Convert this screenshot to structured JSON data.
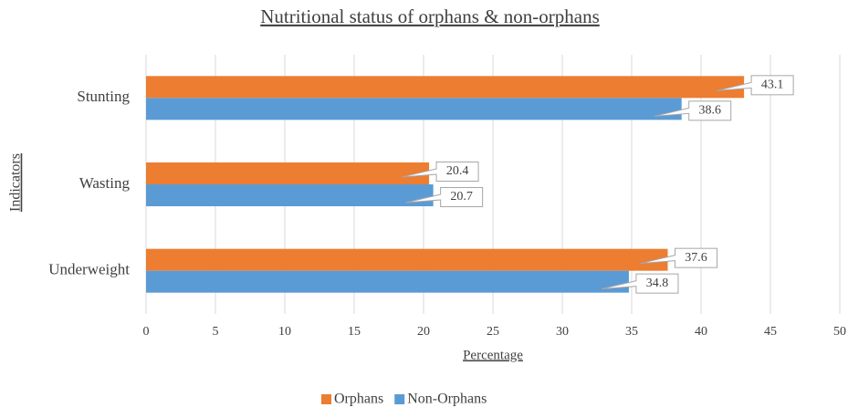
{
  "chart_data": {
    "type": "bar",
    "orientation": "horizontal",
    "title": "Nutritional status of orphans & non-orphans",
    "x_label": "Percentage",
    "y_label": "Indicators",
    "categories": [
      "Stunting",
      "Wasting",
      "Underweight"
    ],
    "series": [
      {
        "name": "Orphans",
        "color": "#ed7d31",
        "values": [
          43.1,
          20.4,
          37.6
        ]
      },
      {
        "name": "Non-Orphans",
        "color": "#5b9bd5",
        "values": [
          38.6,
          20.7,
          34.8
        ]
      }
    ],
    "xlim": [
      0,
      50
    ],
    "xticks": [
      0,
      5,
      10,
      15,
      20,
      25,
      30,
      35,
      40,
      45,
      50
    ],
    "grid": true,
    "legend": "bottom"
  }
}
